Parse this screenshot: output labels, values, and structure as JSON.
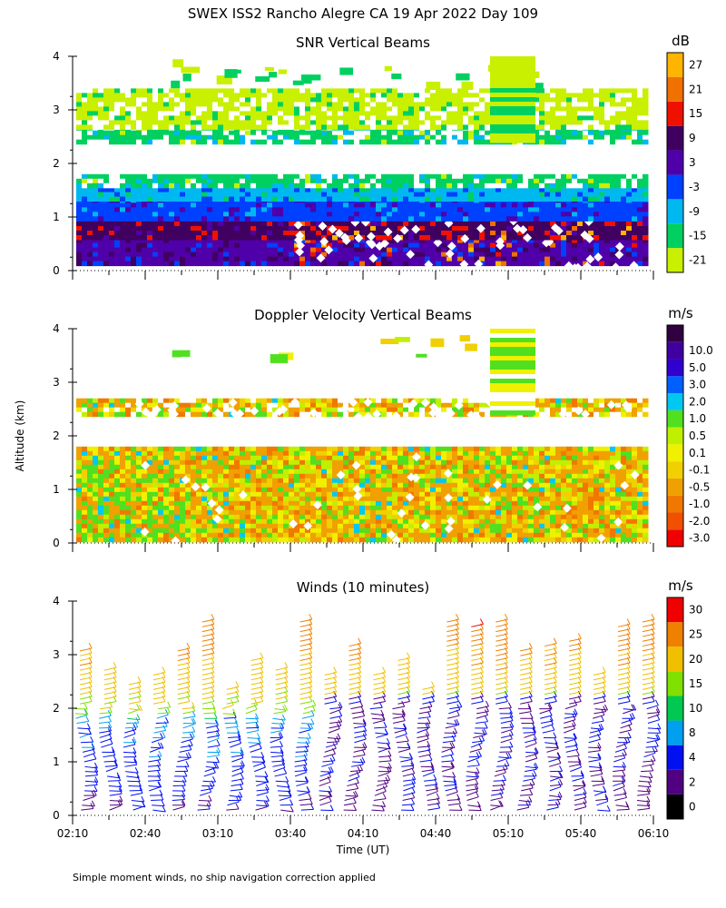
{
  "title": "SWEX ISS2 Rancho Alegre CA  19 Apr 2022 Day 109",
  "ylabel": "Altitude (km)",
  "footnote": "Simple moment winds, no ship navigation correction applied",
  "colors": {
    "snr": [
      "#c8f000",
      "#00d060",
      "#00b8f0",
      "#0040ff",
      "#5000a8",
      "#400060",
      "#f01000",
      "#f07000",
      "#ffb400"
    ],
    "doppler": [
      "#f00000",
      "#f05000",
      "#f07800",
      "#f0a000",
      "#f0d000",
      "#f0f000",
      "#c0f000",
      "#50e020",
      "#00c8f0",
      "#0060ff",
      "#3000d0",
      "#4000a0",
      "#300040"
    ],
    "winds": [
      "#000000",
      "#500080",
      "#0010f0",
      "#00a0f0",
      "#00c850",
      "#80e000",
      "#f0c000",
      "#f08000",
      "#f00000"
    ]
  },
  "chart_data": [
    {
      "type": "heatmap",
      "title": "SNR Vertical Beams",
      "unit": "dB",
      "xlabel": "",
      "ylim": [
        0,
        4
      ],
      "yticks": [
        "0",
        "1",
        "2",
        "3",
        "4"
      ],
      "xlim": [
        "02:10",
        "06:10"
      ],
      "colorbar": {
        "labels": [
          "-21",
          "-15",
          "-9",
          "-3",
          "3",
          "9",
          "15",
          "21",
          "27"
        ]
      },
      "layers": [
        {
          "bottom_km": 0.1,
          "top_km": 0.6,
          "value_db": 0
        },
        {
          "bottom_km": 0.6,
          "top_km": 1.0,
          "value_db": 9
        },
        {
          "bottom_km": 1.0,
          "top_km": 1.35,
          "value_db": -3
        },
        {
          "bottom_km": 1.35,
          "top_km": 1.55,
          "value_db": -9
        },
        {
          "bottom_km": 1.55,
          "top_km": 1.8,
          "value_db": -15
        },
        {
          "bottom_km": 2.4,
          "top_km": 2.7,
          "value_db": -15
        },
        {
          "bottom_km": 2.7,
          "top_km": 3.4,
          "value_db": -21
        }
      ]
    },
    {
      "type": "heatmap",
      "title": "Doppler Velocity Vertical Beams",
      "unit": "m/s",
      "ylim": [
        0,
        4
      ],
      "yticks": [
        "0",
        "1",
        "2",
        "3",
        "4"
      ],
      "xlim": [
        "02:10",
        "06:10"
      ],
      "colorbar": {
        "labels": [
          "-3.0",
          "-2.0",
          "-1.0",
          "-0.5",
          "-0.1",
          "0.1",
          "0.5",
          "1.0",
          "2.0",
          "3.0",
          "5.0",
          "10.0"
        ]
      },
      "layers": [
        {
          "bottom_km": 0.1,
          "top_km": 1.8,
          "value_ms": -0.5
        },
        {
          "bottom_km": 2.4,
          "top_km": 2.7,
          "value_ms": -0.5
        }
      ]
    },
    {
      "type": "scatter",
      "title": "Winds (10 minutes)",
      "unit": "m/s",
      "xlabel": "Time (UT)",
      "ylim": [
        0,
        4
      ],
      "yticks": [
        "0",
        "1",
        "2",
        "3",
        "4"
      ],
      "xticks": [
        "02:10",
        "02:40",
        "03:10",
        "03:40",
        "04:10",
        "04:40",
        "05:10",
        "05:40",
        "06:10"
      ],
      "colorbar": {
        "labels": [
          "0",
          "2",
          "4",
          "8",
          "10",
          "15",
          "20",
          "25",
          "30"
        ]
      },
      "profile_interval_min": 10,
      "profile_start": "02:10",
      "profile_count": 24
    }
  ]
}
